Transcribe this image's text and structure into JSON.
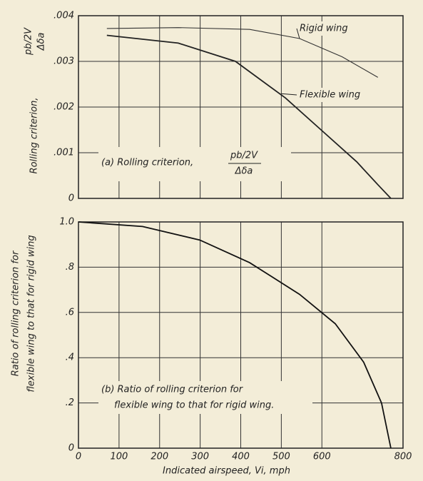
{
  "chart_data": [
    {
      "type": "line",
      "y_label": "Rolling criterion,",
      "y_label_num": "pb/2V",
      "y_label_den": "Δδa",
      "annotation": "(a) Rolling criterion,",
      "annotation_num": "pb/2V",
      "annotation_den": "Δδa",
      "xlim": [
        0,
        800
      ],
      "xticks": [
        0,
        100,
        200,
        300,
        400,
        500,
        600,
        800
      ],
      "ylim": [
        0,
        0.004
      ],
      "yticks": [
        {
          "value": 0,
          "label": "0"
        },
        {
          "value": 0.001,
          "label": ".001"
        },
        {
          "value": 0.002,
          "label": ".002"
        },
        {
          "value": 0.003,
          "label": ".003"
        },
        {
          "value": 0.004,
          "label": ".004"
        }
      ],
      "grid": true,
      "series": [
        {
          "name": "Rigid wing",
          "color": "#333333",
          "x": [
            70,
            246,
            422,
            545,
            650,
            738
          ],
          "values": [
            0.00372,
            0.00374,
            0.0037,
            0.0035,
            0.0031,
            0.00265
          ]
        },
        {
          "name": "Flexible wing",
          "color": "#222222",
          "x": [
            70,
            246,
            387,
            510,
            598,
            686,
            738,
            770
          ],
          "values": [
            0.00357,
            0.0034,
            0.003,
            0.0022,
            0.0015,
            0.0008,
            0.0003,
            0
          ]
        }
      ]
    },
    {
      "type": "line",
      "y_label": [
        "Ratio of rolling criterion for",
        "flexible wing to that for  rigid wing"
      ],
      "annotation": [
        "(b) Ratio of rolling criterion for",
        "flexible wing to that for rigid wing."
      ],
      "x_label": "Indicated airspeed, Vi, mph",
      "xlim": [
        0,
        800
      ],
      "xticks": [
        0,
        100,
        200,
        300,
        400,
        500,
        600,
        800
      ],
      "ylim": [
        0,
        1.0
      ],
      "yticks": [
        {
          "value": 0,
          "label": "0"
        },
        {
          "value": 0.2,
          "label": ".2"
        },
        {
          "value": 0.4,
          "label": ".4"
        },
        {
          "value": 0.6,
          "label": ".6"
        },
        {
          "value": 0.8,
          "label": ".8"
        },
        {
          "value": 1.0,
          "label": "1.0"
        }
      ],
      "grid": true,
      "series": [
        {
          "name": null,
          "color": "#111111",
          "x": [
            0,
            158,
            299,
            422,
            545,
            633,
            703,
            747,
            770
          ],
          "values": [
            1.0,
            0.98,
            0.92,
            0.82,
            0.68,
            0.55,
            0.38,
            0.2,
            0
          ]
        }
      ]
    }
  ]
}
